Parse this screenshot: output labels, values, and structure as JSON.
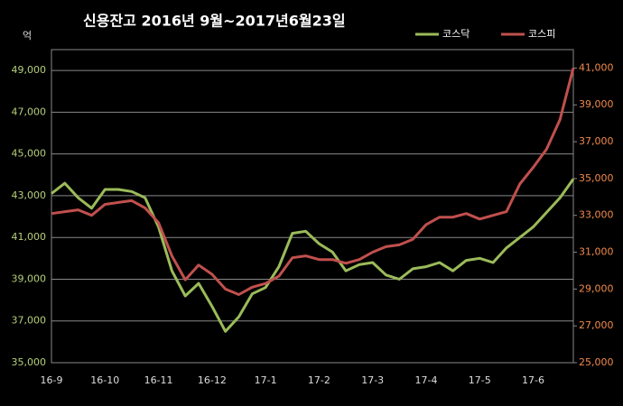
{
  "chart_data": {
    "type": "line",
    "title": "신용잔고 2016년 9월~2017년6월23일",
    "y_unit": "억",
    "categories": [
      "16-9",
      null,
      null,
      null,
      "16-10",
      null,
      null,
      null,
      "16-11",
      null,
      null,
      null,
      "16-12",
      null,
      null,
      null,
      "17-1",
      null,
      null,
      null,
      "17-2",
      null,
      null,
      null,
      "17-3",
      null,
      null,
      null,
      "17-4",
      null,
      null,
      null,
      "17-5",
      null,
      null,
      null,
      "17-6",
      null,
      null,
      null
    ],
    "series": [
      {
        "name": "코스닥",
        "color": "#9bbb59",
        "axis": "y",
        "values": [
          43100,
          43600,
          42900,
          42400,
          43300,
          43300,
          43200,
          42900,
          41500,
          39400,
          38200,
          38800,
          37700,
          36500,
          37200,
          38300,
          38600,
          39600,
          41200,
          41300,
          40700,
          40300,
          39400,
          39700,
          39800,
          39200,
          39000,
          39500,
          39600,
          39800,
          39400,
          39900,
          40000,
          39800,
          40500,
          41000,
          41500,
          42200,
          42900,
          43800
        ]
      },
      {
        "name": "코스피",
        "color": "#c0504d",
        "axis": "y2",
        "values": [
          33100,
          33200,
          33300,
          33000,
          33600,
          33700,
          33800,
          33400,
          32600,
          30800,
          29500,
          30300,
          29800,
          29000,
          28700,
          29100,
          29300,
          29700,
          30700,
          30800,
          30600,
          30600,
          30400,
          30600,
          31000,
          31300,
          31400,
          31700,
          32500,
          32900,
          32900,
          33100,
          32800,
          33000,
          33200,
          34700,
          35600,
          36600,
          38200,
          41000
        ]
      }
    ],
    "ylim": [
      35000,
      50000
    ],
    "yticks": [
      {
        "value": 35000,
        "label": "35,000"
      },
      {
        "value": 37000,
        "label": "37,000"
      },
      {
        "value": 39000,
        "label": "39,000"
      },
      {
        "value": 41000,
        "label": "41,000"
      },
      {
        "value": 43000,
        "label": "43,000"
      },
      {
        "value": 45000,
        "label": "45,000"
      },
      {
        "value": 47000,
        "label": "47,000"
      },
      {
        "value": 49000,
        "label": "49,000"
      }
    ],
    "y2lim": [
      25000,
      42000
    ],
    "y2ticks": [
      {
        "value": 25000,
        "label": "25,000"
      },
      {
        "value": 27000,
        "label": "27,000"
      },
      {
        "value": 29000,
        "label": "29,000"
      },
      {
        "value": 31000,
        "label": "31,000"
      },
      {
        "value": 33000,
        "label": "33,000"
      },
      {
        "value": 35000,
        "label": "35,000"
      },
      {
        "value": 37000,
        "label": "37,000"
      },
      {
        "value": 39000,
        "label": "39,000"
      },
      {
        "value": 41000,
        "label": "41,000"
      }
    ],
    "grid": true,
    "legend": "top-right"
  }
}
